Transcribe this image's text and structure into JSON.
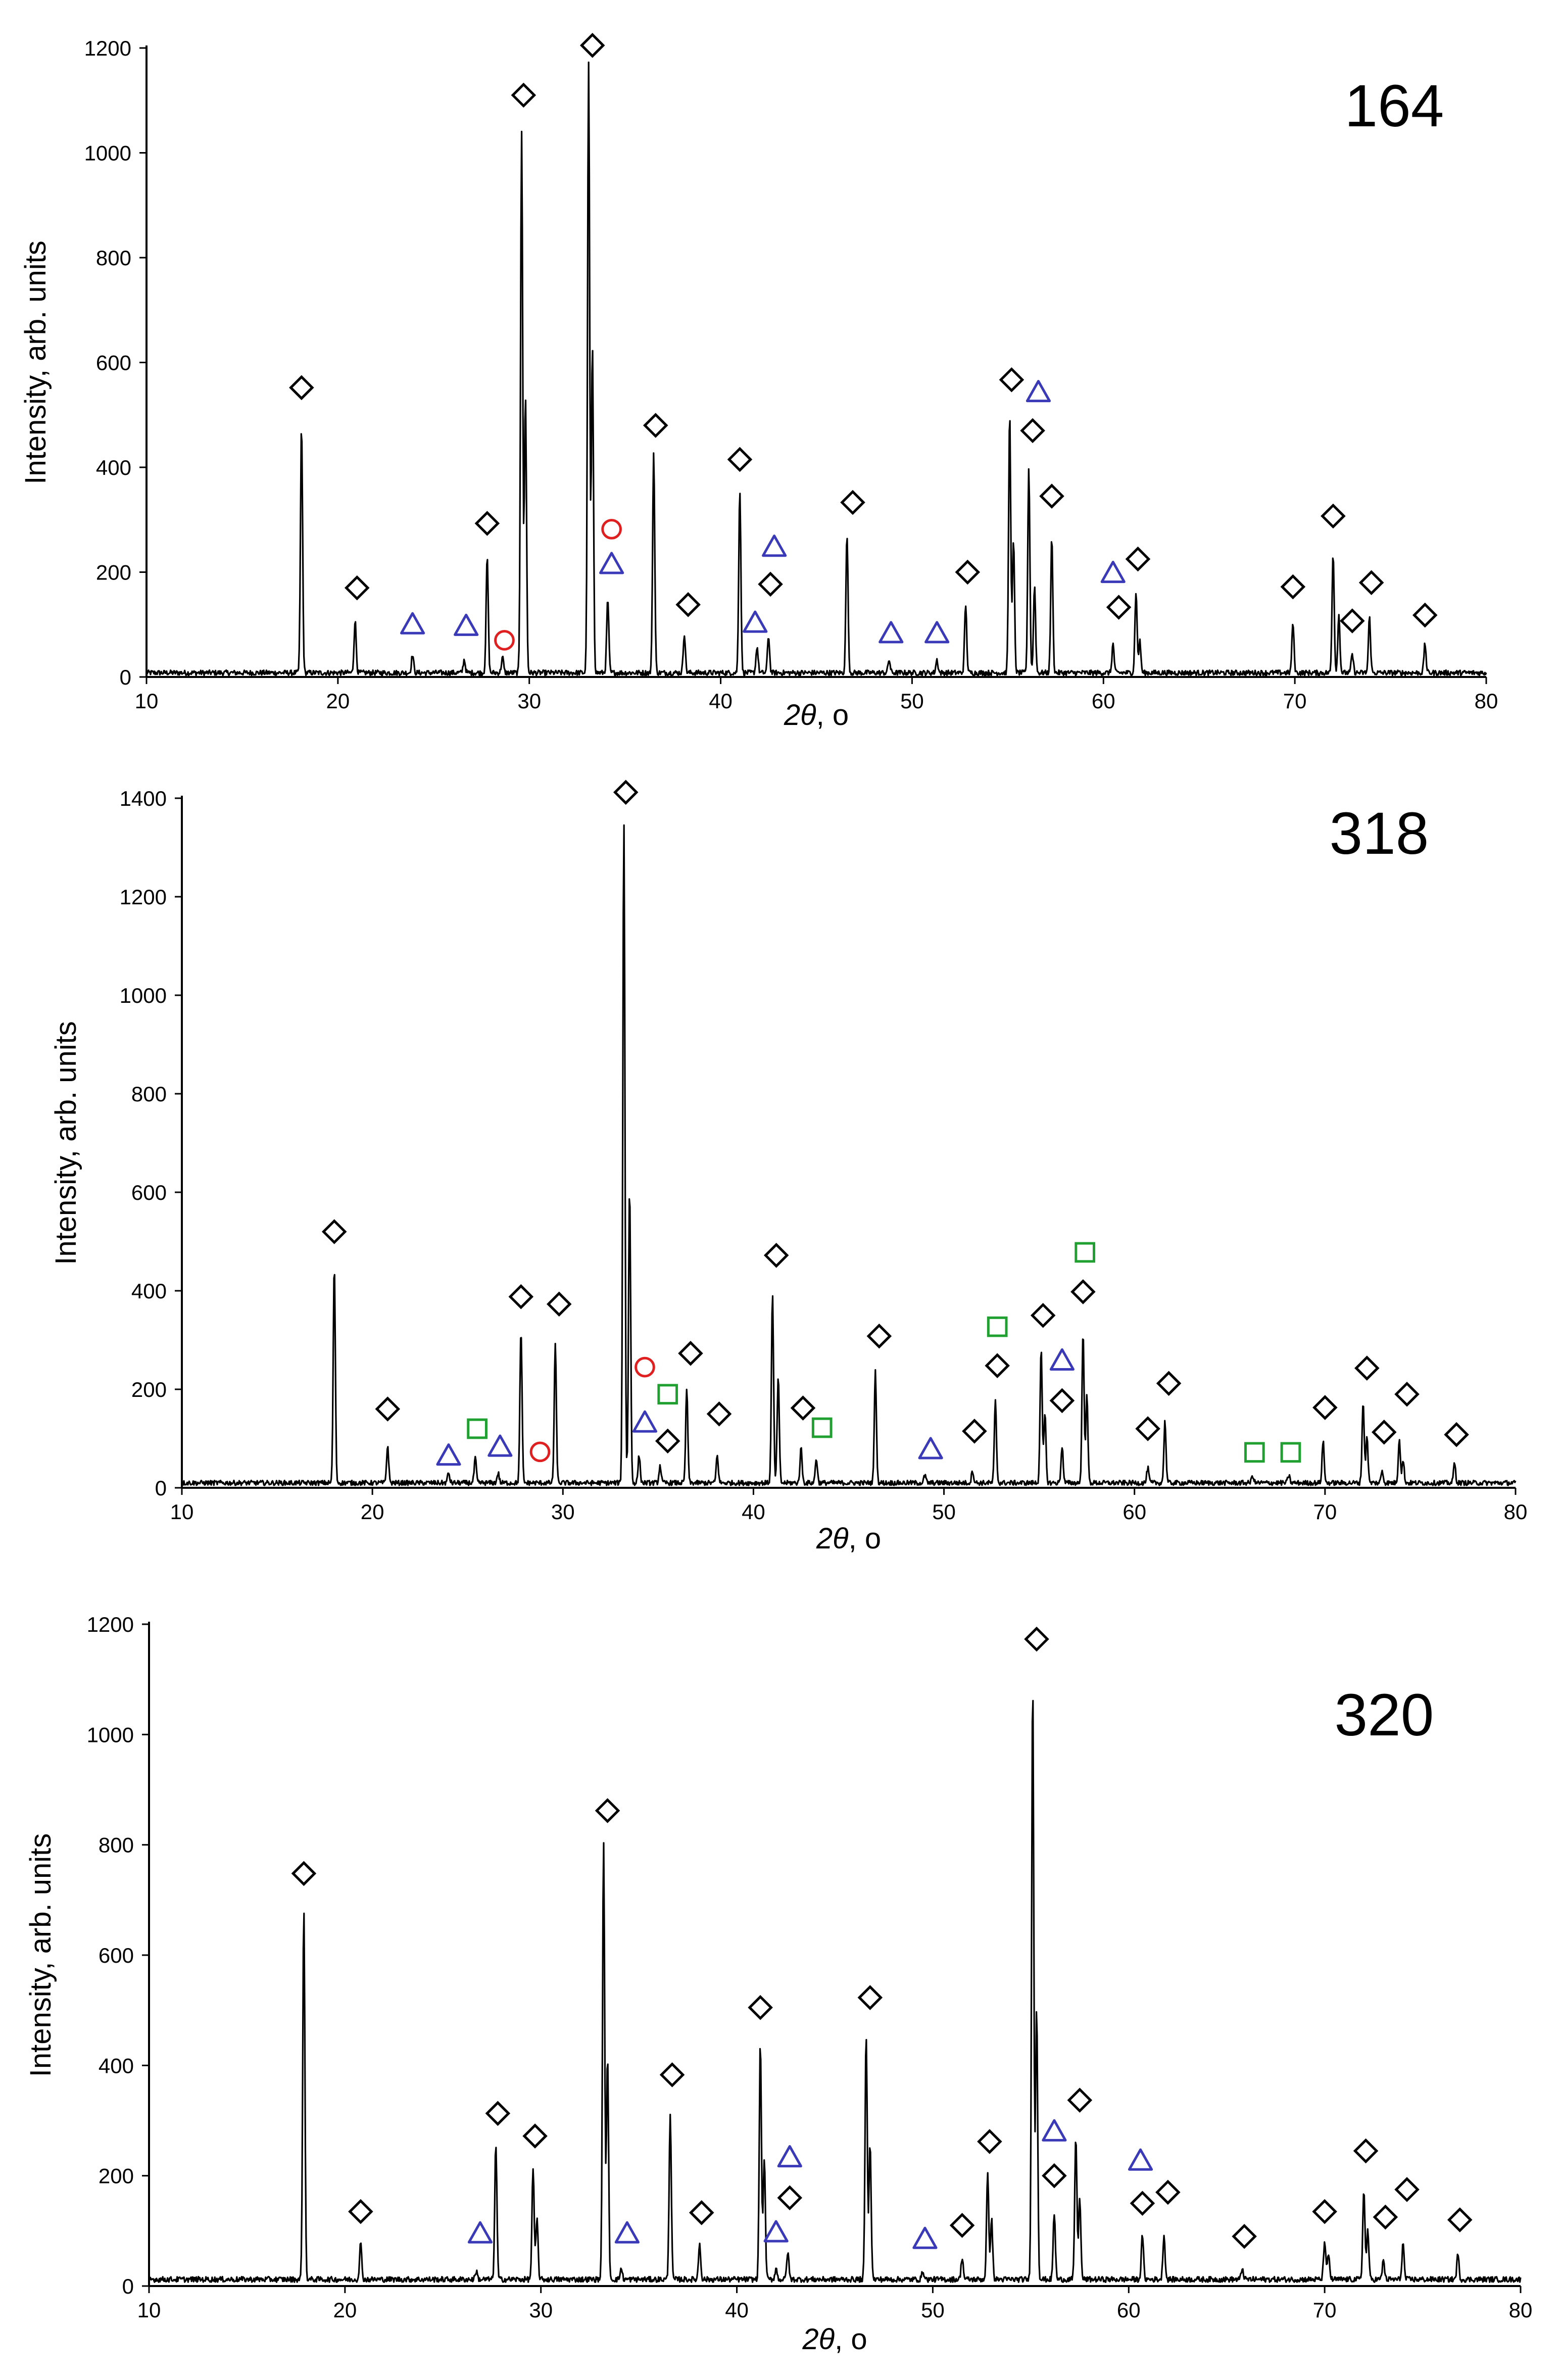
{
  "figure": {
    "x_axis_title_italic": "2θ",
    "x_axis_title_suffix": ", o",
    "y_axis_title": "Intensity, arb. units"
  },
  "symbols": {
    "diamond": {
      "shape": "diamond",
      "color": "#000000"
    },
    "triangle": {
      "shape": "triangle",
      "color": "#3a3ab8"
    },
    "circle": {
      "shape": "circle",
      "color": "#e02020"
    },
    "square": {
      "shape": "square",
      "color": "#20a030"
    }
  },
  "chart_data": [
    {
      "type": "line",
      "title": "164",
      "xlabel": "2θ, o",
      "ylabel": "Intensity, arb. units",
      "xlim": [
        10,
        80
      ],
      "ylim": [
        0,
        1200
      ],
      "xticks": [
        10,
        20,
        30,
        40,
        50,
        60,
        70,
        80
      ],
      "yticks": [
        0,
        200,
        400,
        600,
        800,
        1000,
        1200
      ],
      "baseline": 8,
      "peaks": [
        [
          18.1,
          470
        ],
        [
          20.9,
          100
        ],
        [
          23.9,
          35
        ],
        [
          26.6,
          25
        ],
        [
          27.8,
          220
        ],
        [
          28.6,
          30
        ],
        [
          29.6,
          1035
        ],
        [
          29.8,
          530
        ],
        [
          33.1,
          1160
        ],
        [
          33.3,
          620
        ],
        [
          34.1,
          140
        ],
        [
          36.5,
          420
        ],
        [
          38.1,
          75
        ],
        [
          41.0,
          350
        ],
        [
          41.9,
          50
        ],
        [
          42.5,
          70
        ],
        [
          46.6,
          265
        ],
        [
          48.8,
          25
        ],
        [
          51.3,
          25
        ],
        [
          52.8,
          130
        ],
        [
          55.1,
          495
        ],
        [
          55.3,
          250
        ],
        [
          56.1,
          390
        ],
        [
          56.4,
          165
        ],
        [
          57.3,
          255
        ],
        [
          60.5,
          55
        ],
        [
          61.7,
          155
        ],
        [
          61.9,
          60
        ],
        [
          69.9,
          95
        ],
        [
          72.0,
          230
        ],
        [
          72.3,
          110
        ],
        [
          73.0,
          35
        ],
        [
          73.9,
          105
        ],
        [
          76.8,
          55
        ]
      ],
      "markers": [
        {
          "type": "diamond",
          "x": 18.1,
          "y": 552
        },
        {
          "type": "diamond",
          "x": 21.0,
          "y": 170
        },
        {
          "type": "triangle",
          "x": 23.9,
          "y": 100
        },
        {
          "type": "triangle",
          "x": 26.7,
          "y": 97
        },
        {
          "type": "circle",
          "x": 28.7,
          "y": 70
        },
        {
          "type": "diamond",
          "x": 27.8,
          "y": 293
        },
        {
          "type": "diamond",
          "x": 29.7,
          "y": 1110
        },
        {
          "type": "diamond",
          "x": 33.3,
          "y": 1205
        },
        {
          "type": "circle",
          "x": 34.3,
          "y": 282
        },
        {
          "type": "triangle",
          "x": 34.3,
          "y": 215
        },
        {
          "type": "diamond",
          "x": 36.6,
          "y": 480
        },
        {
          "type": "diamond",
          "x": 38.3,
          "y": 138
        },
        {
          "type": "diamond",
          "x": 41.0,
          "y": 415
        },
        {
          "type": "triangle",
          "x": 41.8,
          "y": 103
        },
        {
          "type": "diamond",
          "x": 42.6,
          "y": 177
        },
        {
          "type": "triangle",
          "x": 42.8,
          "y": 248
        },
        {
          "type": "diamond",
          "x": 46.9,
          "y": 333
        },
        {
          "type": "triangle",
          "x": 48.9,
          "y": 83
        },
        {
          "type": "triangle",
          "x": 51.3,
          "y": 83
        },
        {
          "type": "diamond",
          "x": 52.9,
          "y": 200
        },
        {
          "type": "diamond",
          "x": 55.2,
          "y": 567
        },
        {
          "type": "triangle",
          "x": 56.6,
          "y": 543
        },
        {
          "type": "diamond",
          "x": 56.3,
          "y": 470
        },
        {
          "type": "diamond",
          "x": 57.3,
          "y": 345
        },
        {
          "type": "triangle",
          "x": 60.5,
          "y": 198
        },
        {
          "type": "diamond",
          "x": 60.8,
          "y": 133
        },
        {
          "type": "diamond",
          "x": 61.8,
          "y": 225
        },
        {
          "type": "diamond",
          "x": 69.9,
          "y": 172
        },
        {
          "type": "diamond",
          "x": 72.0,
          "y": 307
        },
        {
          "type": "diamond",
          "x": 73.0,
          "y": 107
        },
        {
          "type": "diamond",
          "x": 74.0,
          "y": 180
        },
        {
          "type": "diamond",
          "x": 76.8,
          "y": 118
        }
      ]
    },
    {
      "type": "line",
      "title": "318",
      "xlabel": "2θ, o",
      "ylabel": "Intensity, arb. units",
      "xlim": [
        10,
        80
      ],
      "ylim": [
        0,
        1400
      ],
      "xticks": [
        10,
        20,
        30,
        40,
        50,
        60,
        70,
        80
      ],
      "yticks": [
        0,
        200,
        400,
        600,
        800,
        1000,
        1200,
        1400
      ],
      "baseline": 10,
      "peaks": [
        [
          18.0,
          440
        ],
        [
          20.8,
          75
        ],
        [
          24.0,
          20
        ],
        [
          25.4,
          50
        ],
        [
          26.6,
          20
        ],
        [
          27.8,
          310
        ],
        [
          29.6,
          280
        ],
        [
          33.2,
          1340
        ],
        [
          33.5,
          600
        ],
        [
          34.0,
          55
        ],
        [
          35.1,
          35
        ],
        [
          36.5,
          190
        ],
        [
          38.1,
          55
        ],
        [
          41.0,
          385
        ],
        [
          41.3,
          215
        ],
        [
          42.5,
          70
        ],
        [
          43.3,
          50
        ],
        [
          46.4,
          225
        ],
        [
          49.0,
          15
        ],
        [
          51.5,
          25
        ],
        [
          52.7,
          165
        ],
        [
          55.1,
          270
        ],
        [
          55.3,
          140
        ],
        [
          56.2,
          75
        ],
        [
          57.3,
          305
        ],
        [
          57.5,
          175
        ],
        [
          60.7,
          30
        ],
        [
          61.6,
          125
        ],
        [
          66.2,
          15
        ],
        [
          68.1,
          15
        ],
        [
          69.9,
          85
        ],
        [
          72.0,
          165
        ],
        [
          72.2,
          95
        ],
        [
          73.0,
          25
        ],
        [
          73.9,
          90
        ],
        [
          74.1,
          45
        ],
        [
          76.8,
          40
        ]
      ],
      "markers": [
        {
          "type": "diamond",
          "x": 18.0,
          "y": 520
        },
        {
          "type": "diamond",
          "x": 20.8,
          "y": 160
        },
        {
          "type": "triangle",
          "x": 24.0,
          "y": 65
        },
        {
          "type": "square",
          "x": 25.5,
          "y": 120
        },
        {
          "type": "triangle",
          "x": 26.7,
          "y": 83
        },
        {
          "type": "diamond",
          "x": 27.8,
          "y": 388
        },
        {
          "type": "circle",
          "x": 28.8,
          "y": 73
        },
        {
          "type": "diamond",
          "x": 29.8,
          "y": 373
        },
        {
          "type": "diamond",
          "x": 33.3,
          "y": 1412
        },
        {
          "type": "circle",
          "x": 34.3,
          "y": 245
        },
        {
          "type": "triangle",
          "x": 34.3,
          "y": 132
        },
        {
          "type": "square",
          "x": 35.5,
          "y": 190
        },
        {
          "type": "diamond",
          "x": 35.5,
          "y": 95
        },
        {
          "type": "diamond",
          "x": 36.7,
          "y": 273
        },
        {
          "type": "diamond",
          "x": 38.2,
          "y": 150
        },
        {
          "type": "diamond",
          "x": 41.2,
          "y": 472
        },
        {
          "type": "diamond",
          "x": 42.6,
          "y": 162
        },
        {
          "type": "square",
          "x": 43.6,
          "y": 122
        },
        {
          "type": "diamond",
          "x": 46.6,
          "y": 308
        },
        {
          "type": "triangle",
          "x": 49.3,
          "y": 78
        },
        {
          "type": "diamond",
          "x": 51.6,
          "y": 115
        },
        {
          "type": "diamond",
          "x": 52.8,
          "y": 248
        },
        {
          "type": "square",
          "x": 52.8,
          "y": 327
        },
        {
          "type": "diamond",
          "x": 55.2,
          "y": 350
        },
        {
          "type": "triangle",
          "x": 56.2,
          "y": 258
        },
        {
          "type": "diamond",
          "x": 56.2,
          "y": 177
        },
        {
          "type": "square",
          "x": 57.4,
          "y": 478
        },
        {
          "type": "diamond",
          "x": 57.3,
          "y": 398
        },
        {
          "type": "diamond",
          "x": 60.7,
          "y": 120
        },
        {
          "type": "diamond",
          "x": 61.8,
          "y": 212
        },
        {
          "type": "square",
          "x": 66.3,
          "y": 72
        },
        {
          "type": "square",
          "x": 68.2,
          "y": 72
        },
        {
          "type": "diamond",
          "x": 70.0,
          "y": 163
        },
        {
          "type": "diamond",
          "x": 72.2,
          "y": 243
        },
        {
          "type": "diamond",
          "x": 73.1,
          "y": 113
        },
        {
          "type": "diamond",
          "x": 74.3,
          "y": 190
        },
        {
          "type": "diamond",
          "x": 76.9,
          "y": 108
        }
      ]
    },
    {
      "type": "line",
      "title": "320",
      "xlabel": "2θ, o",
      "ylabel": "Intensity, arb. units",
      "xlim": [
        10,
        80
      ],
      "ylim": [
        0,
        1200
      ],
      "xticks": [
        10,
        20,
        30,
        40,
        50,
        60,
        70,
        80
      ],
      "yticks": [
        0,
        200,
        400,
        600,
        800,
        1000,
        1200
      ],
      "baseline": 12,
      "peaks": [
        [
          17.9,
          670
        ],
        [
          20.8,
          65
        ],
        [
          26.7,
          15
        ],
        [
          27.7,
          245
        ],
        [
          29.6,
          200
        ],
        [
          29.8,
          110
        ],
        [
          33.2,
          790
        ],
        [
          33.4,
          400
        ],
        [
          34.1,
          20
        ],
        [
          36.6,
          300
        ],
        [
          38.1,
          65
        ],
        [
          41.2,
          430
        ],
        [
          41.4,
          220
        ],
        [
          42.0,
          20
        ],
        [
          42.6,
          50
        ],
        [
          46.6,
          445
        ],
        [
          46.8,
          250
        ],
        [
          49.5,
          15
        ],
        [
          51.5,
          40
        ],
        [
          52.8,
          190
        ],
        [
          53.0,
          110
        ],
        [
          55.1,
          1085
        ],
        [
          55.3,
          490
        ],
        [
          56.2,
          120
        ],
        [
          57.3,
          260
        ],
        [
          57.5,
          150
        ],
        [
          60.7,
          80
        ],
        [
          61.8,
          80
        ],
        [
          65.8,
          20
        ],
        [
          70.0,
          70
        ],
        [
          70.2,
          45
        ],
        [
          72.0,
          165
        ],
        [
          72.2,
          90
        ],
        [
          73.0,
          35
        ],
        [
          74.0,
          65
        ],
        [
          76.8,
          45
        ]
      ],
      "markers": [
        {
          "type": "diamond",
          "x": 17.9,
          "y": 748
        },
        {
          "type": "diamond",
          "x": 20.8,
          "y": 135
        },
        {
          "type": "triangle",
          "x": 26.9,
          "y": 95
        },
        {
          "type": "diamond",
          "x": 27.8,
          "y": 313
        },
        {
          "type": "diamond",
          "x": 29.7,
          "y": 272
        },
        {
          "type": "diamond",
          "x": 33.4,
          "y": 862
        },
        {
          "type": "triangle",
          "x": 34.4,
          "y": 95
        },
        {
          "type": "diamond",
          "x": 36.7,
          "y": 383
        },
        {
          "type": "diamond",
          "x": 38.2,
          "y": 133
        },
        {
          "type": "diamond",
          "x": 41.2,
          "y": 505
        },
        {
          "type": "triangle",
          "x": 42.0,
          "y": 97
        },
        {
          "type": "diamond",
          "x": 42.7,
          "y": 160
        },
        {
          "type": "triangle",
          "x": 42.7,
          "y": 233
        },
        {
          "type": "diamond",
          "x": 46.8,
          "y": 523
        },
        {
          "type": "triangle",
          "x": 49.6,
          "y": 85
        },
        {
          "type": "diamond",
          "x": 51.5,
          "y": 110
        },
        {
          "type": "diamond",
          "x": 52.9,
          "y": 262
        },
        {
          "type": "diamond",
          "x": 55.3,
          "y": 1173
        },
        {
          "type": "triangle",
          "x": 56.2,
          "y": 280
        },
        {
          "type": "diamond",
          "x": 56.2,
          "y": 200
        },
        {
          "type": "diamond",
          "x": 57.5,
          "y": 337
        },
        {
          "type": "triangle",
          "x": 60.6,
          "y": 227
        },
        {
          "type": "diamond",
          "x": 60.7,
          "y": 150
        },
        {
          "type": "diamond",
          "x": 62.0,
          "y": 170
        },
        {
          "type": "diamond",
          "x": 65.9,
          "y": 90
        },
        {
          "type": "diamond",
          "x": 70.0,
          "y": 135
        },
        {
          "type": "diamond",
          "x": 72.1,
          "y": 245
        },
        {
          "type": "diamond",
          "x": 73.1,
          "y": 125
        },
        {
          "type": "diamond",
          "x": 74.2,
          "y": 175
        },
        {
          "type": "diamond",
          "x": 76.9,
          "y": 120
        }
      ]
    }
  ]
}
